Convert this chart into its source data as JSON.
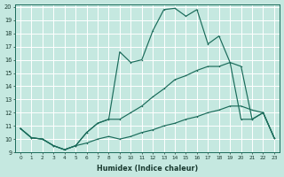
{
  "xlabel": "Humidex (Indice chaleur)",
  "bg_color": "#c5e8e0",
  "grid_color": "#ffffff",
  "line_color": "#1a6b5a",
  "xlim": [
    -0.5,
    23.5
  ],
  "ylim": [
    9,
    20.2
  ],
  "yticks": [
    9,
    10,
    11,
    12,
    13,
    14,
    15,
    16,
    17,
    18,
    19,
    20
  ],
  "xticks": [
    0,
    1,
    2,
    3,
    4,
    5,
    6,
    7,
    8,
    9,
    10,
    11,
    12,
    13,
    14,
    15,
    16,
    17,
    18,
    19,
    20,
    21,
    22,
    23
  ],
  "line1_x": [
    0,
    1,
    2,
    3,
    4,
    5,
    6,
    7,
    8,
    9,
    10,
    11,
    12,
    13,
    14,
    15,
    16,
    17,
    18,
    19,
    20,
    21,
    22,
    23
  ],
  "line1_y": [
    10.8,
    10.1,
    10.0,
    9.5,
    9.2,
    9.5,
    9.7,
    10.0,
    10.2,
    10.0,
    10.2,
    10.5,
    10.7,
    11.0,
    11.2,
    11.5,
    11.7,
    12.0,
    12.2,
    12.5,
    12.5,
    12.2,
    12.0,
    10.1
  ],
  "line2_x": [
    0,
    1,
    2,
    3,
    4,
    5,
    6,
    7,
    8,
    9,
    10,
    11,
    12,
    13,
    14,
    15,
    16,
    17,
    18,
    19,
    20,
    21,
    22,
    23
  ],
  "line2_y": [
    10.8,
    10.1,
    10.0,
    9.5,
    9.2,
    9.5,
    10.5,
    11.2,
    11.5,
    16.6,
    15.8,
    16.0,
    18.2,
    19.8,
    19.9,
    19.3,
    19.8,
    17.2,
    17.8,
    15.8,
    11.5,
    11.5,
    12.0,
    10.1
  ],
  "line3_x": [
    0,
    1,
    2,
    3,
    4,
    5,
    6,
    7,
    8,
    9,
    10,
    11,
    12,
    13,
    14,
    15,
    16,
    17,
    18,
    19,
    20,
    21,
    22,
    23
  ],
  "line3_y": [
    10.8,
    10.1,
    10.0,
    9.5,
    9.2,
    9.5,
    10.5,
    11.2,
    11.5,
    11.5,
    12.0,
    12.5,
    13.2,
    13.8,
    14.5,
    14.8,
    15.2,
    15.5,
    15.5,
    15.8,
    15.5,
    11.5,
    12.0,
    10.1
  ]
}
